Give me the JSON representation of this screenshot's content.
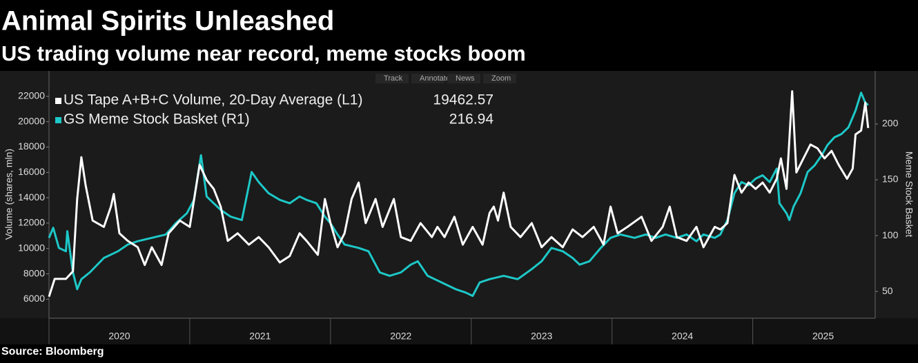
{
  "chart_data": {
    "type": "line",
    "title": "Animal Spirits Unleashed",
    "subtitle": "US trading volume near record, meme stocks boom",
    "ylabel": "Volume (shares, mln)",
    "y2label": "Meme Stock Basket",
    "source": "Source: Bloomberg",
    "toolbar": [
      "Track",
      "Annotate",
      "News",
      "Zoom"
    ],
    "xlim": [
      2020,
      2025.87
    ],
    "xticks": [
      {
        "value": 2020,
        "label": "2020"
      },
      {
        "value": 2021,
        "label": "2021"
      },
      {
        "value": 2022,
        "label": "2022"
      },
      {
        "value": 2023,
        "label": "2023"
      },
      {
        "value": 2024,
        "label": "2024"
      },
      {
        "value": 2025,
        "label": "2025"
      }
    ],
    "ylim": [
      4500,
      24000
    ],
    "yticks": [
      6000,
      8000,
      10000,
      12000,
      14000,
      16000,
      18000,
      20000,
      22000
    ],
    "y2lim": [
      26,
      247.5
    ],
    "y2ticks": [
      50,
      100,
      150,
      200
    ],
    "legend": "top-left",
    "series": [
      {
        "name": "US Tape A+B+C Volume, 20-Day Average (L1)",
        "color": "#ffffff",
        "axis": "y",
        "last_value": 19462.57,
        "x": [
          2020.0,
          2020.04,
          2020.12,
          2020.17,
          2020.2,
          2020.23,
          2020.26,
          2020.31,
          2020.39,
          2020.44,
          2020.46,
          2020.5,
          2020.56,
          2020.63,
          2020.68,
          2020.73,
          2020.8,
          2020.85,
          2020.93,
          2021.0,
          2021.07,
          2021.12,
          2021.17,
          2021.22,
          2021.27,
          2021.34,
          2021.42,
          2021.49,
          2021.56,
          2021.64,
          2021.71,
          2021.78,
          2021.83,
          2021.91,
          2021.96,
          2022.0,
          2022.05,
          2022.1,
          2022.15,
          2022.2,
          2022.25,
          2022.32,
          2022.37,
          2022.45,
          2022.5,
          2022.57,
          2022.64,
          2022.72,
          2022.76,
          2022.81,
          2022.88,
          2022.94,
          2023.01,
          2023.08,
          2023.13,
          2023.16,
          2023.19,
          2023.23,
          2023.28,
          2023.35,
          2023.43,
          2023.5,
          2023.57,
          2023.65,
          2023.72,
          2023.79,
          2023.87,
          2023.94,
          2023.99,
          2024.04,
          2024.11,
          2024.21,
          2024.28,
          2024.36,
          2024.41,
          2024.46,
          2024.53,
          2024.6,
          2024.65,
          2024.73,
          2024.77,
          2024.82,
          2024.87,
          2024.92,
          2024.97,
          2025.02,
          2025.07,
          2025.12,
          2025.17,
          2025.2,
          2025.24,
          2025.28,
          2025.31,
          2025.36,
          2025.41,
          2025.46,
          2025.51,
          2025.56,
          2025.61,
          2025.67,
          2025.71,
          2025.73,
          2025.77,
          2025.8,
          2025.82
        ],
        "values": [
          6200,
          7600,
          7600,
          8200,
          13900,
          17200,
          15000,
          12200,
          11700,
          13300,
          14300,
          11200,
          10600,
          10100,
          8700,
          10100,
          8700,
          11200,
          12200,
          11700,
          16600,
          15400,
          14700,
          13300,
          10600,
          11200,
          10300,
          10900,
          10100,
          8900,
          9400,
          11200,
          10600,
          9500,
          13900,
          12000,
          10100,
          11200,
          13900,
          15200,
          12000,
          13900,
          11700,
          13900,
          10900,
          10600,
          12000,
          10900,
          11700,
          10900,
          12500,
          10300,
          11700,
          10300,
          12800,
          13300,
          12200,
          14400,
          11700,
          10900,
          12000,
          10100,
          10900,
          10100,
          11500,
          10900,
          11700,
          10300,
          13300,
          11200,
          11700,
          12500,
          10600,
          11700,
          13300,
          10900,
          10600,
          11700,
          10100,
          11700,
          11500,
          12000,
          15800,
          14400,
          15200,
          14700,
          15200,
          14400,
          15500,
          17100,
          14700,
          22400,
          16000,
          17100,
          18200,
          17900,
          17100,
          17700,
          16600,
          15500,
          16300,
          19000,
          19300,
          21500,
          19500
        ]
      },
      {
        "name": "GS Meme Stock Basket (R1)",
        "color": "#1ec8c8",
        "axis": "y2",
        "last_value": 216.94,
        "x": [
          2020.0,
          2020.03,
          2020.07,
          2020.12,
          2020.13,
          2020.17,
          2020.2,
          2020.23,
          2020.29,
          2020.39,
          2020.49,
          2020.56,
          2020.63,
          2020.73,
          2020.83,
          2020.9,
          2020.98,
          2021.03,
          2021.08,
          2021.12,
          2021.17,
          2021.22,
          2021.29,
          2021.37,
          2021.44,
          2021.49,
          2021.56,
          2021.64,
          2021.71,
          2021.78,
          2021.83,
          2021.9,
          2021.96,
          2022.0,
          2022.05,
          2022.1,
          2022.2,
          2022.27,
          2022.35,
          2022.42,
          2022.5,
          2022.57,
          2022.62,
          2022.69,
          2022.79,
          2022.89,
          2022.96,
          2023.01,
          2023.06,
          2023.13,
          2023.23,
          2023.33,
          2023.43,
          2023.5,
          2023.57,
          2023.65,
          2023.72,
          2023.77,
          2023.84,
          2023.92,
          2023.99,
          2024.06,
          2024.16,
          2024.24,
          2024.31,
          2024.38,
          2024.46,
          2024.53,
          2024.6,
          2024.65,
          2024.73,
          2024.77,
          2024.82,
          2024.87,
          2024.92,
          2024.97,
          2025.02,
          2025.07,
          2025.12,
          2025.17,
          2025.19,
          2025.24,
          2025.26,
          2025.29,
          2025.34,
          2025.39,
          2025.44,
          2025.49,
          2025.53,
          2025.58,
          2025.63,
          2025.68,
          2025.73,
          2025.77,
          2025.8,
          2025.82
        ],
        "values": [
          98,
          107,
          89,
          86,
          104,
          67,
          52,
          61,
          67,
          80,
          86,
          92,
          95,
          98,
          101,
          111,
          120,
          132,
          172,
          135,
          129,
          123,
          117,
          114,
          157,
          148,
          138,
          132,
          129,
          135,
          132,
          129,
          117,
          111,
          101,
          92,
          89,
          86,
          67,
          64,
          67,
          74,
          77,
          64,
          58,
          52,
          49,
          46,
          58,
          61,
          64,
          61,
          70,
          77,
          89,
          86,
          80,
          74,
          77,
          89,
          98,
          101,
          98,
          101,
          98,
          101,
          98,
          101,
          95,
          101,
          98,
          101,
          114,
          138,
          148,
          145,
          151,
          154,
          148,
          160,
          129,
          120,
          114,
          126,
          138,
          157,
          163,
          172,
          181,
          188,
          191,
          197,
          212,
          228,
          219,
          217
        ]
      }
    ]
  }
}
